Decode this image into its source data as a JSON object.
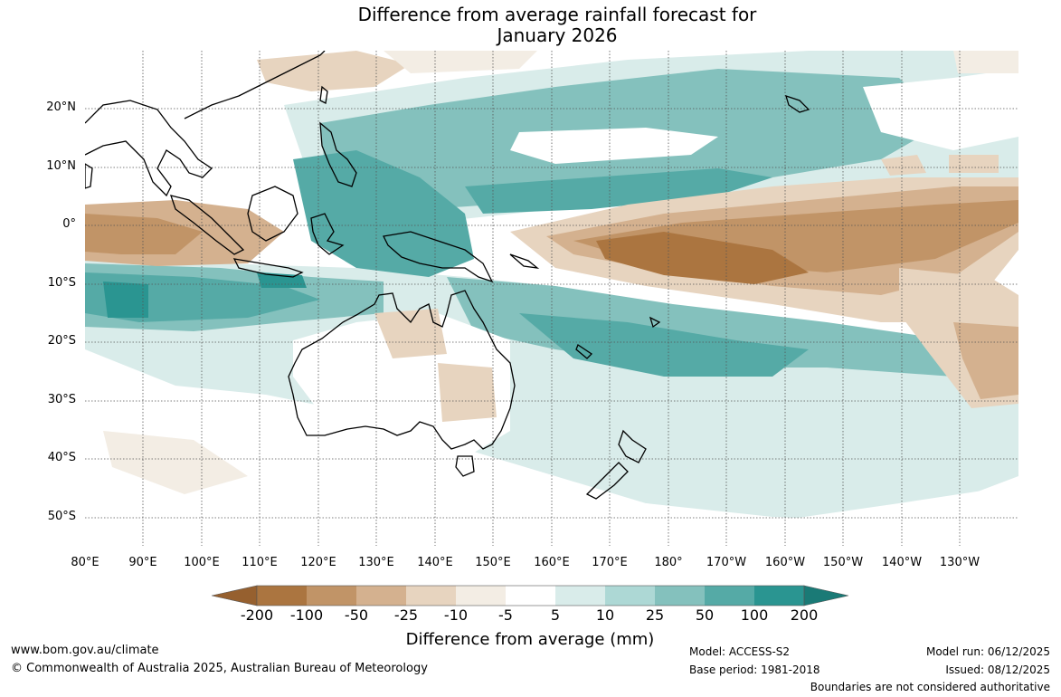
{
  "title": {
    "line1": "Difference from average rainfall forecast for",
    "line2": "January 2026"
  },
  "map": {
    "lat_labels": [
      "20°N",
      "10°N",
      "0°",
      "10°S",
      "20°S",
      "30°S",
      "40°S",
      "50°S"
    ],
    "lon_labels": [
      "80°E",
      "90°E",
      "100°E",
      "110°E",
      "120°E",
      "130°E",
      "140°E",
      "150°E",
      "160°E",
      "170°E",
      "180°",
      "170°W",
      "160°W",
      "150°W",
      "140°W",
      "130°W"
    ]
  },
  "colorbar": {
    "label": "Difference from average (mm)",
    "ticks": [
      "-200",
      "-100",
      "-50",
      "-25",
      "-10",
      "-5",
      "5",
      "10",
      "25",
      "50",
      "100",
      "200"
    ],
    "colors": {
      "dry_extreme": "#96602f",
      "dry_100": "#ab7540",
      "dry_50": "#c19467",
      "dry_25": "#d4b18f",
      "dry_10": "#e7d4bf",
      "dry_5": "#f3ede4",
      "neutral": "#ffffff",
      "wet_5": "#d9ecea",
      "wet_10": "#add8d5",
      "wet_25": "#84c1bd",
      "wet_50": "#55aaa6",
      "wet_100": "#2a9591",
      "wet_extreme": "#1a7a76"
    }
  },
  "footer": {
    "website": "www.bom.gov.au/climate",
    "copyright": "© Commonwealth of Australia 2025, Australian Bureau of Meteorology",
    "model": "Model: ACCESS-S2",
    "base_period": "Base period: 1981-2018",
    "model_run": "Model run: 06/12/2025",
    "issued": "Issued: 08/12/2025",
    "disclaimer": "Boundaries are not considered authoritative"
  }
}
